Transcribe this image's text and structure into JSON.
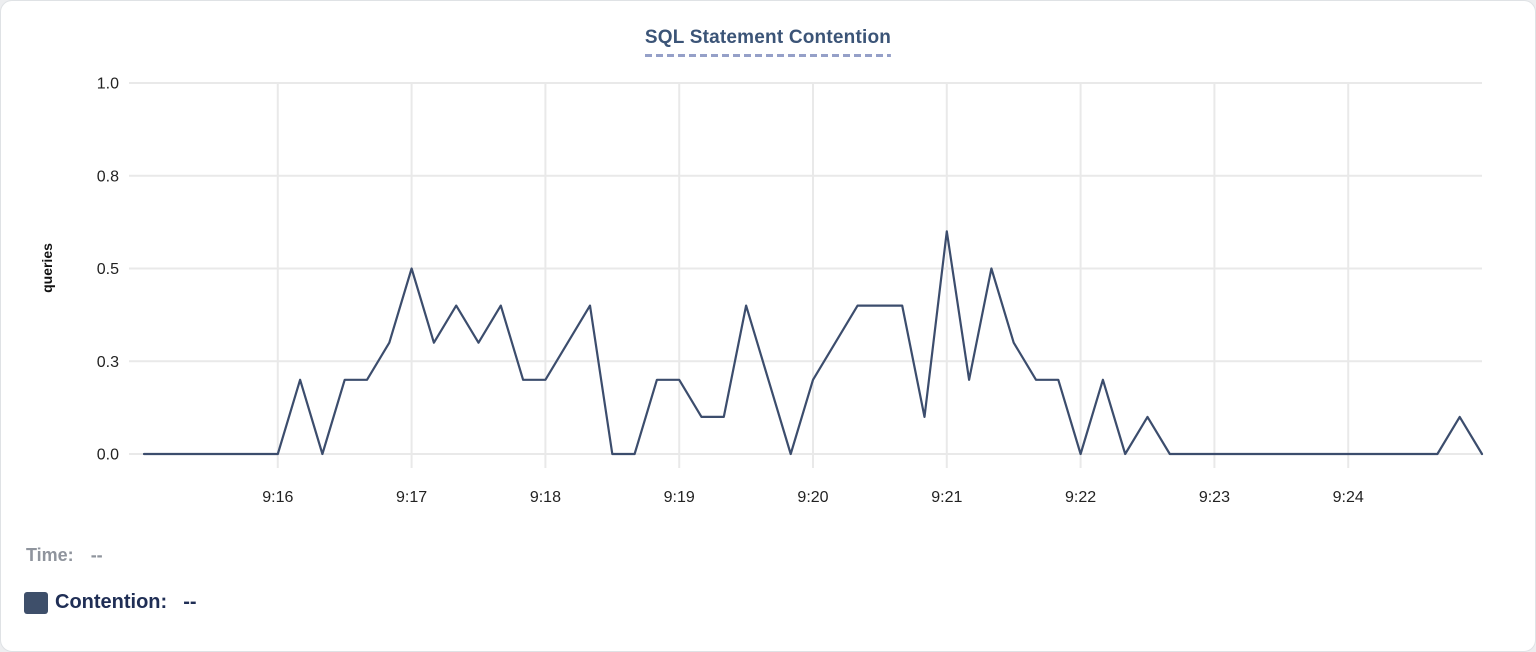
{
  "title": {
    "text": "SQL Statement Contention"
  },
  "tooltip": {
    "time_label": "Time:",
    "time_value": "--",
    "series_label": "Contention:",
    "series_value": "--"
  },
  "colors": {
    "line": "#3c4d6d",
    "swatch": "#3e4f6a",
    "title": "#3b5477",
    "title_dash": "#95a0c8",
    "grid": "#e9e9e9",
    "tick": "#222222",
    "muted": "#8f949d",
    "legend_text": "#1f2e55"
  },
  "chart_data": {
    "type": "line",
    "title": "SQL Statement Contention",
    "xlabel": "",
    "ylabel": "queries",
    "ylim": [
      0,
      1
    ],
    "grid": true,
    "legend_position": "bottom-left",
    "x_start": "9:15:00",
    "x_end": "9:25:00",
    "x_interval_seconds": 10,
    "x_tick_labels": [
      "9:16",
      "9:17",
      "9:18",
      "9:19",
      "9:20",
      "9:21",
      "9:22",
      "9:23",
      "9:24"
    ],
    "y_ticks": [
      {
        "label": "0.0",
        "value": 0
      },
      {
        "label": "0.3",
        "value": 0.25
      },
      {
        "label": "0.5",
        "value": 0.5
      },
      {
        "label": "0.8",
        "value": 0.75
      },
      {
        "label": "1.0",
        "value": 1
      }
    ],
    "series": [
      {
        "name": "Contention",
        "color": "#3c4d6d",
        "values": [
          0,
          0,
          0,
          0,
          0,
          0,
          0,
          0.2,
          0,
          0.2,
          0.2,
          0.3,
          0.5,
          0.3,
          0.4,
          0.3,
          0.4,
          0.2,
          0.2,
          0.3,
          0.4,
          0,
          0,
          0.2,
          0.2,
          0.1,
          0.1,
          0.4,
          0.2,
          0,
          0.2,
          0.3,
          0.4,
          0.4,
          0.4,
          0.1,
          0.6,
          0.2,
          0.5,
          0.3,
          0.2,
          0.2,
          0,
          0.2,
          0,
          0.1,
          0,
          0,
          0,
          0,
          0,
          0,
          0,
          0,
          0,
          0,
          0,
          0,
          0,
          0.1,
          0
        ]
      }
    ]
  }
}
